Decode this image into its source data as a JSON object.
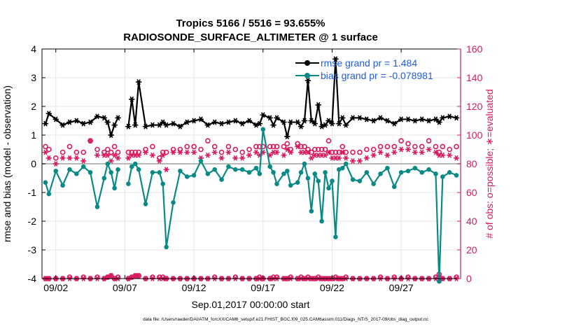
{
  "chart_data": {
    "type": "line",
    "title": "Tropics 5166 / 5516 = 93.655%",
    "subtitle": "RADIOSONDE_SURFACE_ALTIMETER @ 1 surface",
    "xlabel": "Sep.01,2017 00:00:00 start",
    "ylabel": "rmse and bias (model - observation)",
    "y2label": "# of obs: o=possible; ∗=evaluated",
    "xlim": [
      0.5,
      30.8
    ],
    "ylim": [
      -4,
      4
    ],
    "y2lim": [
      0,
      160
    ],
    "x_ticks": [
      1.5,
      6.5,
      11.5,
      16.5,
      21.5,
      26.5
    ],
    "x_tick_labels": [
      "09/02",
      "09/07",
      "09/12",
      "09/17",
      "09/22",
      "09/27"
    ],
    "y_ticks": [
      -4,
      -3,
      -2,
      -1,
      0,
      1,
      2,
      3,
      4
    ],
    "y_tick_labels": [
      "-4",
      "-3",
      "-2",
      "-1",
      "0",
      "1",
      "2",
      "3",
      "4"
    ],
    "y2_ticks": [
      0,
      20,
      40,
      60,
      80,
      100,
      120,
      140,
      160
    ],
    "y2_tick_labels": [
      "0",
      "20",
      "40",
      "60",
      "80",
      "100",
      "120",
      "140",
      "160"
    ],
    "x": [
      0.75,
      1,
      1.5,
      2,
      2.5,
      3,
      3.5,
      4,
      4.5,
      5,
      5.25,
      5.5,
      5.75,
      6,
      6.5,
      6.75,
      7,
      7.25,
      7.5,
      8,
      8.5,
      9,
      9.25,
      9.5,
      10,
      10.5,
      11,
      11.5,
      12,
      12.5,
      13,
      13.5,
      14,
      14.5,
      15,
      15.5,
      16,
      16.25,
      16.5,
      17,
      17.25,
      17.5,
      18,
      18.25,
      18.5,
      19,
      19.25,
      19.5,
      19.75,
      20,
      20.25,
      20.5,
      20.75,
      21,
      21.25,
      21.5,
      21.75,
      22,
      22.25,
      22.5,
      23,
      23.5,
      24,
      24.5,
      25,
      25.5,
      26,
      26.5,
      27,
      27.5,
      28,
      28.5,
      29,
      29.25,
      29.5,
      30,
      30.5
    ],
    "series": [
      {
        "name": "rmse",
        "legend": "rmse grand pr = 1.484",
        "color": "#000000",
        "marker": "asterisk",
        "values": [
          1.4,
          1.75,
          1.55,
          1.35,
          1.45,
          1.5,
          1.4,
          1.45,
          1.65,
          1.6,
          1.45,
          1.0,
          1.35,
          1.6,
          null,
          1.3,
          2.25,
          1.35,
          2.85,
          1.3,
          1.35,
          1.35,
          1.45,
          1.35,
          1.4,
          1.3,
          1.45,
          1.5,
          1.55,
          1.35,
          1.45,
          1.4,
          1.45,
          1.5,
          1.4,
          1.5,
          1.35,
          1.4,
          1.7,
          1.6,
          1.35,
          1.6,
          1.45,
          0.95,
          1.45,
          1.45,
          1.3,
          1.5,
          2.9,
          1.5,
          1.4,
          2.05,
          1.3,
          1.35,
          1.5,
          1.4,
          3.65,
          1.4,
          1.6,
          1.35,
          1.6,
          1.6,
          1.55,
          1.5,
          1.6,
          1.5,
          1.4,
          1.55,
          1.55,
          1.5,
          1.55,
          1.5,
          1.55,
          1.45,
          1.6,
          1.65,
          1.6
        ]
      },
      {
        "name": "bias",
        "legend": "bias grand pr = -0.078981",
        "color": "#0a8a87",
        "marker": "dot",
        "values": [
          -0.65,
          -1.05,
          -0.25,
          -0.75,
          -0.2,
          -0.35,
          -0.1,
          -0.3,
          -1.5,
          -0.5,
          0.0,
          -0.3,
          -0.85,
          -0.2,
          null,
          -0.7,
          -0.1,
          0.0,
          -0.2,
          -1.4,
          -0.3,
          -0.3,
          -0.7,
          -2.9,
          -1.35,
          -0.25,
          -0.45,
          -0.4,
          0.1,
          -0.35,
          -0.2,
          -0.55,
          -0.1,
          -0.2,
          -0.2,
          -0.3,
          -0.15,
          -0.35,
          1.2,
          -0.1,
          -0.3,
          -0.7,
          -0.35,
          -0.25,
          -0.75,
          -0.65,
          -0.3,
          0.0,
          -0.5,
          -1.65,
          -0.35,
          -0.6,
          -2.0,
          -0.3,
          -0.85,
          -0.6,
          -2.55,
          -0.2,
          -0.15,
          0.0,
          -0.55,
          -0.6,
          -0.3,
          -0.7,
          -0.35,
          -0.15,
          -0.8,
          -0.3,
          -0.25,
          -0.15,
          -0.3,
          -0.2,
          -0.35,
          -4.1,
          -0.45,
          -0.3,
          -0.4
        ]
      }
    ],
    "obs_series": [
      {
        "name": "possible",
        "marker": "o",
        "axis": "right",
        "color": "#d9185e",
        "values": [
          92,
          90,
          84,
          88,
          92,
          88,
          88,
          96,
          90,
          88,
          90,
          88,
          92,
          88,
          null,
          88,
          88,
          88,
          88,
          90,
          92,
          84,
          88,
          88,
          90,
          90,
          92,
          92,
          90,
          96,
          92,
          88,
          92,
          90,
          88,
          90,
          92,
          92,
          92,
          92,
          92,
          92,
          92,
          94,
          90,
          94,
          92,
          92,
          90,
          88,
          90,
          90,
          90,
          90,
          96,
          88,
          88,
          88,
          92,
          88,
          88,
          88,
          90,
          90,
          92,
          92,
          92,
          96,
          94,
          92,
          92,
          96,
          92,
          88,
          92,
          90,
          92
        ]
      },
      {
        "name": "evaluated",
        "marker": "asterisk",
        "axis": "right",
        "color": "#d9185e",
        "values": [
          88,
          84,
          80,
          84,
          84,
          84,
          82,
          96,
          86,
          86,
          86,
          82,
          86,
          84,
          null,
          84,
          86,
          86,
          86,
          88,
          86,
          82,
          86,
          76,
          88,
          88,
          88,
          88,
          84,
          86,
          88,
          84,
          88,
          84,
          84,
          86,
          88,
          86,
          88,
          86,
          88,
          88,
          86,
          90,
          88,
          92,
          88,
          88,
          88,
          84,
          86,
          86,
          86,
          86,
          88,
          84,
          84,
          84,
          88,
          84,
          82,
          82,
          84,
          86,
          88,
          86,
          88,
          90,
          90,
          88,
          88,
          90,
          88,
          86,
          86,
          86,
          84
        ]
      }
    ],
    "possible_bottom": [
      0,
      0,
      0,
      0,
      1,
      0,
      1,
      0,
      1,
      0,
      1,
      2,
      0,
      1,
      null,
      0,
      1,
      2,
      2,
      0,
      1,
      1,
      1,
      0,
      0,
      0,
      0,
      0,
      0,
      0,
      1,
      0,
      0,
      1,
      0,
      0,
      0,
      1,
      0,
      0,
      1,
      1,
      0,
      0,
      1,
      0,
      1,
      0,
      1,
      0,
      0,
      1,
      0,
      0,
      0,
      0,
      1,
      0,
      0,
      1,
      0,
      0,
      0,
      0,
      1,
      0,
      1,
      0,
      1,
      0,
      0,
      0,
      1,
      3,
      0,
      0,
      1
    ],
    "evaluated_bottom": [
      0,
      0,
      0,
      0,
      0,
      0,
      0,
      0,
      0,
      0,
      1,
      2,
      0,
      0,
      null,
      0,
      1,
      2,
      2,
      0,
      0,
      0,
      0,
      0,
      0,
      0,
      0,
      0,
      0,
      0,
      0,
      0,
      0,
      0,
      0,
      0,
      0,
      0,
      0,
      0,
      0,
      0,
      0,
      0,
      0,
      0,
      0,
      0,
      0,
      0,
      0,
      0,
      0,
      0,
      0,
      0,
      0,
      0,
      0,
      0,
      0,
      0,
      0,
      0,
      0,
      0,
      0,
      0,
      0,
      0,
      0,
      0,
      0,
      1,
      0,
      0,
      0
    ],
    "zero_line": 0
  },
  "footer": "data file: /Users/raeder/DAI/ATM_forcXX/CAM6_setup/f.e21.FHIST_BGC.f09_025.CAM6assim.011/Diags_NTrS_2017-09/obs_diag_output.nc",
  "colors": {
    "axis": "#000000",
    "right_axis": "#d9185e",
    "legend_text": "#1f5fd6",
    "zero_line": "#b8b8b8"
  }
}
